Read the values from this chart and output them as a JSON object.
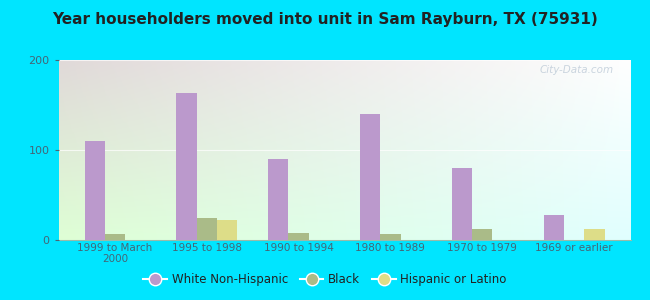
{
  "title": "Year householders moved into unit in Sam Rayburn, TX (75931)",
  "categories": [
    "1999 to March\n2000",
    "1995 to 1998",
    "1990 to 1994",
    "1980 to 1989",
    "1970 to 1979",
    "1969 or earlier"
  ],
  "white_non_hispanic": [
    110,
    163,
    90,
    140,
    80,
    28
  ],
  "black": [
    7,
    25,
    8,
    7,
    12,
    0
  ],
  "hispanic_or_latino": [
    0,
    22,
    0,
    0,
    0,
    12
  ],
  "white_color": "#bb99cc",
  "black_color": "#aabb88",
  "hispanic_color": "#dddd88",
  "background_outer": "#00e5ff",
  "ylim": [
    0,
    200
  ],
  "yticks": [
    0,
    100,
    200
  ],
  "bar_width": 0.22,
  "watermark": "City-Data.com",
  "legend_labels": [
    "White Non-Hispanic",
    "Black",
    "Hispanic or Latino"
  ]
}
